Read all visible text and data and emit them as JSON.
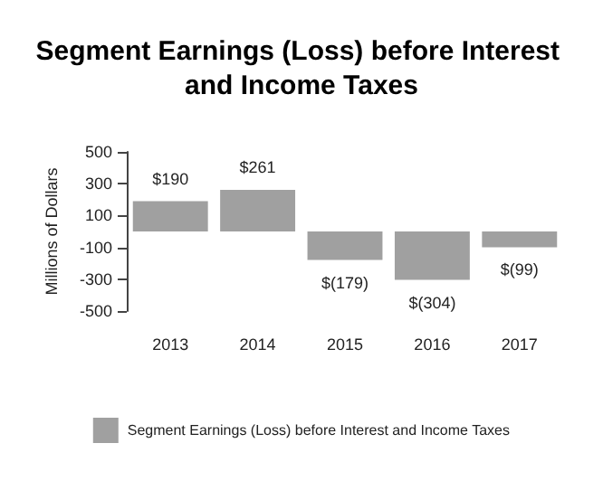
{
  "chart_data": {
    "type": "bar",
    "title": "Segment Earnings (Loss) before Interest and Income Taxes",
    "ylabel": "Millions of Dollars",
    "categories": [
      "2013",
      "2014",
      "2015",
      "2016",
      "2017"
    ],
    "series": [
      {
        "name": "Segment Earnings (Loss) before Interest and Income Taxes",
        "color": "#a0a0a0",
        "values": [
          190,
          261,
          -179,
          -304,
          -99
        ],
        "value_labels": [
          "$190",
          "$261",
          "$(179)",
          "$(304)",
          "$(99)"
        ]
      }
    ],
    "ylim": [
      -500,
      500
    ],
    "yticks": [
      -500,
      -300,
      -100,
      100,
      300,
      500
    ],
    "grid": false,
    "legend": "bottom"
  }
}
